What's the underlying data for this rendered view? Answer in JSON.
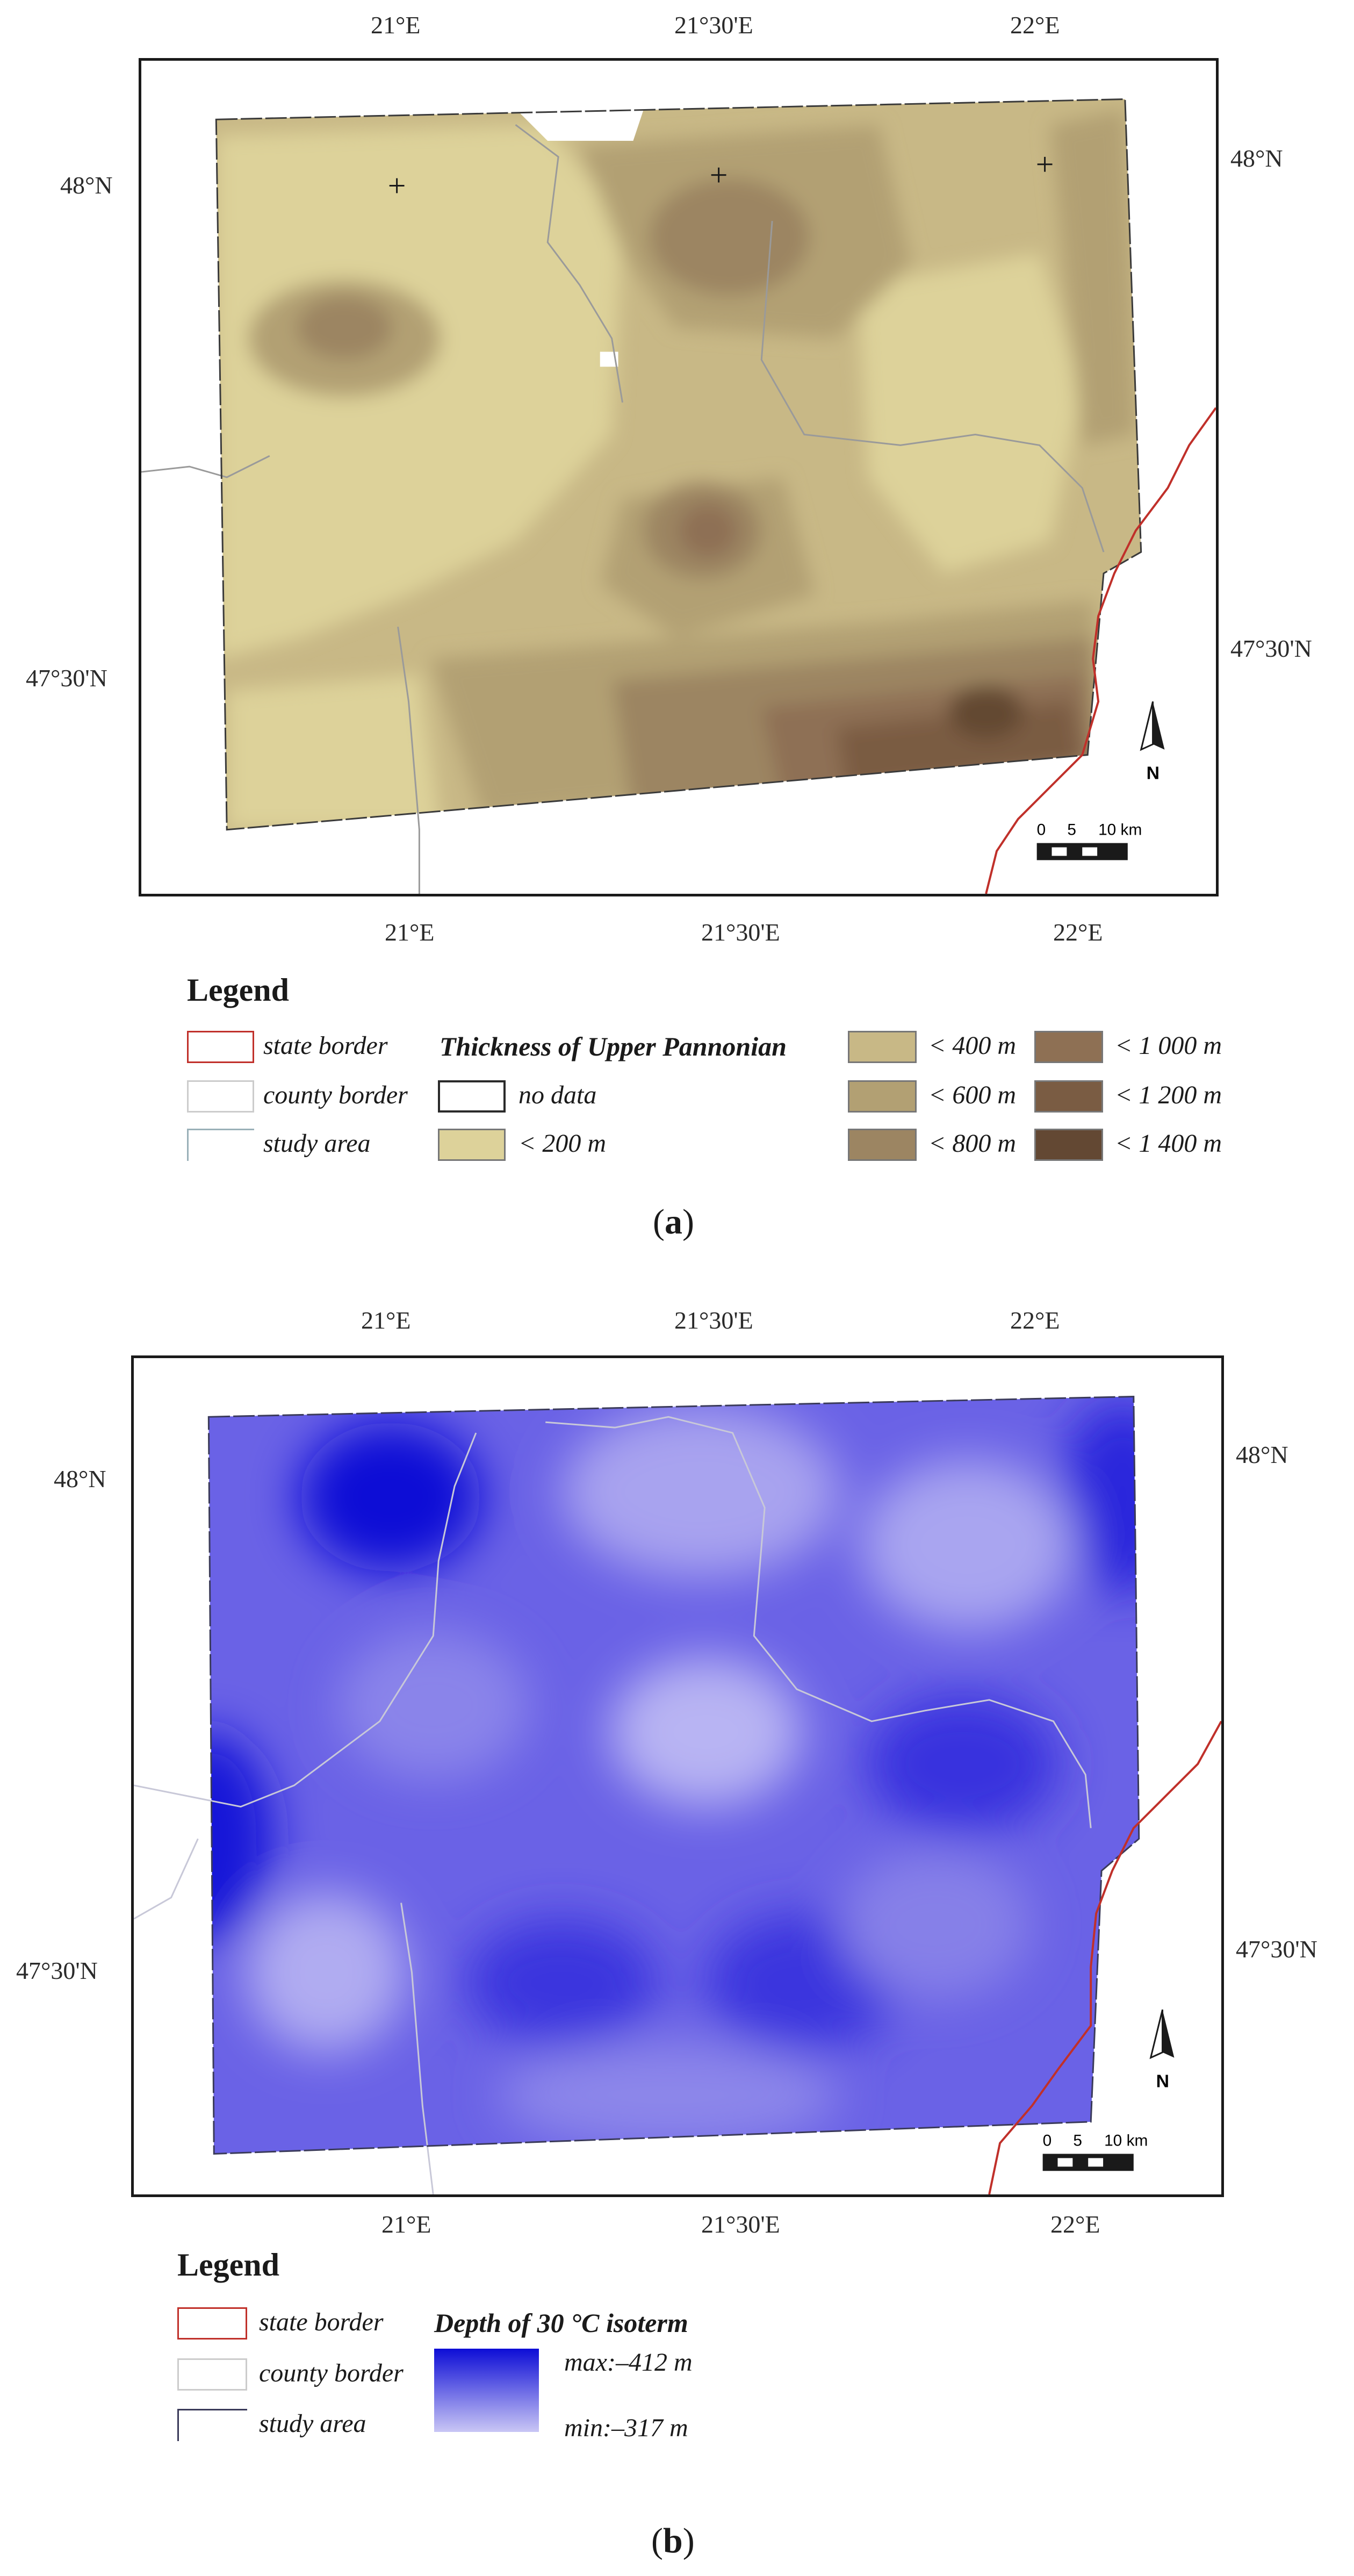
{
  "panel_a": {
    "top_ticks": [
      "21°E",
      "21°30'E",
      "22°E"
    ],
    "bottom_ticks": [
      "21°E",
      "21°30'E",
      "22°E"
    ],
    "left_ticks": [
      "48°N",
      "47°30'N"
    ],
    "right_ticks": [
      "48°N",
      "47°30'N"
    ],
    "north_label": "N",
    "scale": {
      "labels": [
        "0",
        "5",
        "10 km"
      ]
    },
    "legend": {
      "title": "Legend",
      "state_border": "state border",
      "county_border": "county border",
      "study_area": "study area",
      "heading": "Thickness of Upper Pannonian",
      "no_data": "no data",
      "classes": [
        "< 200 m",
        "< 400 m",
        "< 600 m",
        "< 800 m",
        "< 1 000 m",
        "< 1 200 m",
        "< 1 400 m"
      ]
    },
    "class_colors": [
      "#ddd29a",
      "#c8b886",
      "#b2a073",
      "#9c8562",
      "#8e7054",
      "#7a5c43",
      "#634833"
    ],
    "caption_letter": "a"
  },
  "panel_b": {
    "top_ticks": [
      "21°E",
      "21°30'E",
      "22°E"
    ],
    "bottom_ticks": [
      "21°E",
      "21°30'E",
      "22°E"
    ],
    "left_ticks": [
      "48°N",
      "47°30'N"
    ],
    "right_ticks": [
      "48°N",
      "47°30'N"
    ],
    "north_label": "N",
    "scale": {
      "labels": [
        "0",
        "5",
        "10 km"
      ]
    },
    "legend": {
      "title": "Legend",
      "state_border": "state border",
      "county_border": "county border",
      "study_area": "study area",
      "heading": "Depth of 30 °C isoterm",
      "max_label": "max:–412 m",
      "min_label": "min:–317 m"
    },
    "ramp_colors": [
      "#0d0dd6",
      "#c9c6f5"
    ],
    "caption_letter": "b"
  },
  "colors": {
    "state_border": "#c0302a",
    "county_border": "#9a9a9a",
    "frame": "#1a1a1a"
  }
}
